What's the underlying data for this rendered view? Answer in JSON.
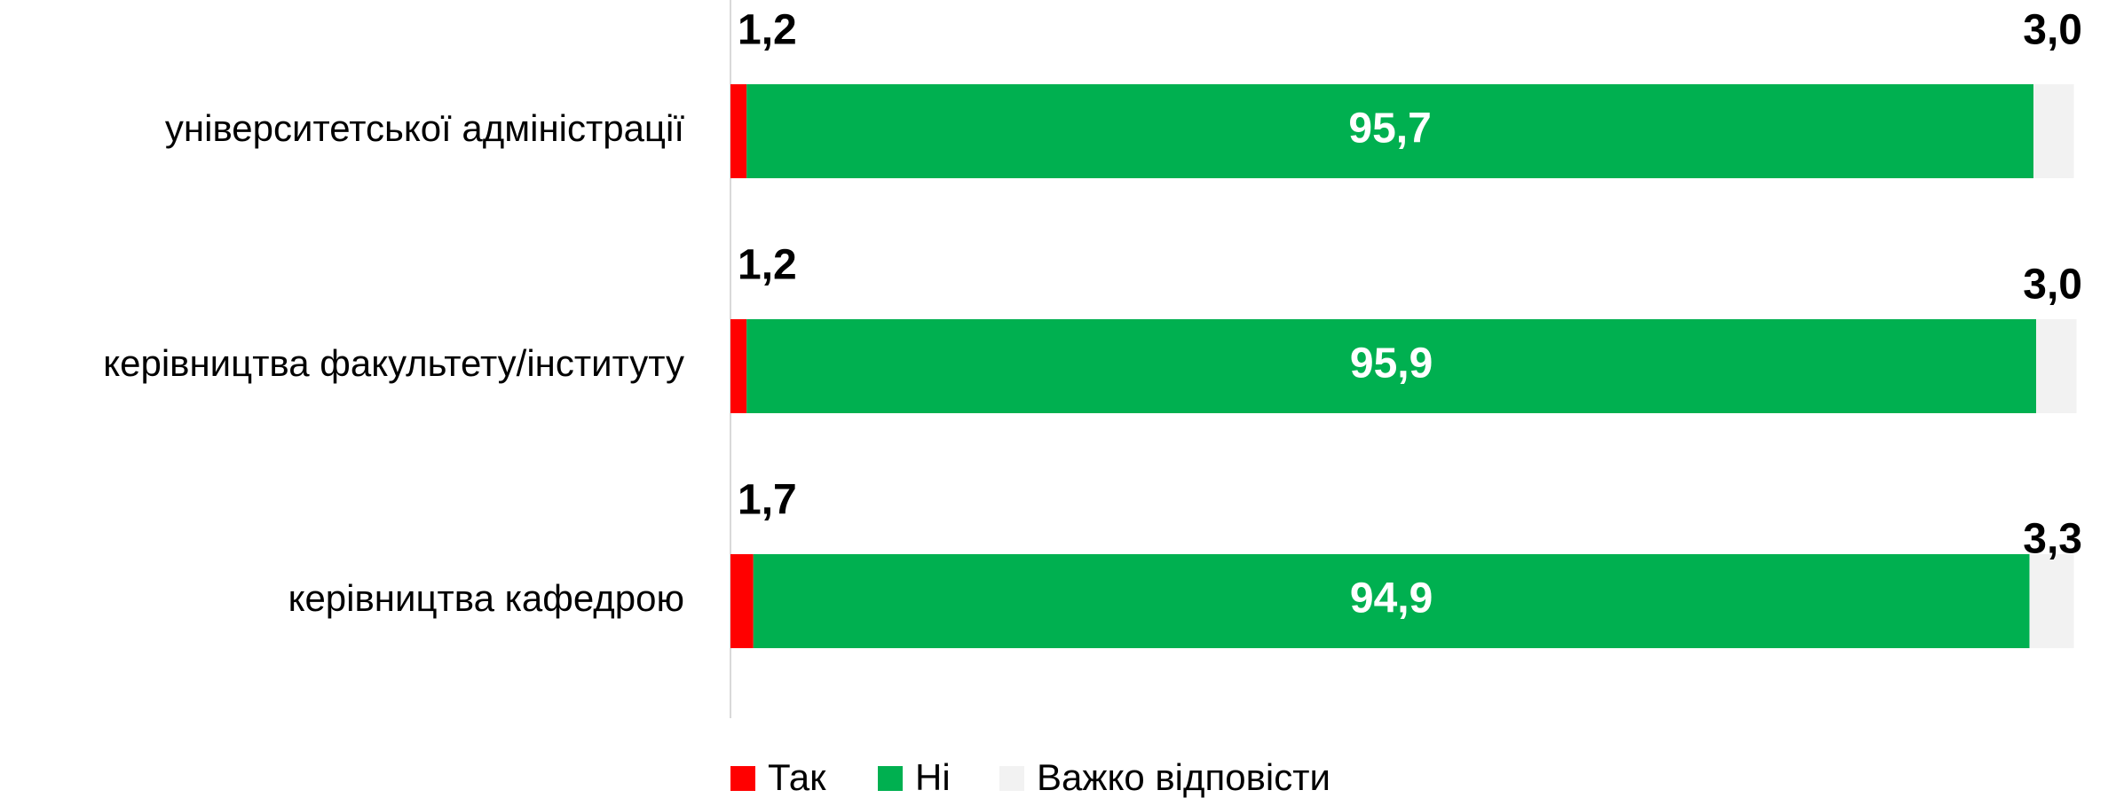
{
  "chart_data": {
    "type": "stacked_bar_horizontal",
    "categories": [
      "університетської адміністрації",
      "керівництва факультету/інституту",
      "керівництва кафедрою"
    ],
    "series": [
      {
        "name": "Так",
        "color": "#ff0000",
        "values": [
          1.2,
          1.2,
          1.7
        ],
        "value_labels": [
          "1,2",
          "1,2",
          "1,7"
        ]
      },
      {
        "name": "Ні",
        "color": "#00b050",
        "values": [
          95.7,
          95.9,
          94.9
        ],
        "value_labels": [
          "95,7",
          "95,9",
          "94,9"
        ]
      },
      {
        "name": "Важко відповісти",
        "color": "#f2f2f2",
        "values": [
          3.0,
          3.0,
          3.3
        ],
        "value_labels": [
          "3,0",
          "3,0",
          "3,3"
        ]
      }
    ],
    "xlim": [
      0,
      100
    ],
    "legend": "bottom"
  }
}
